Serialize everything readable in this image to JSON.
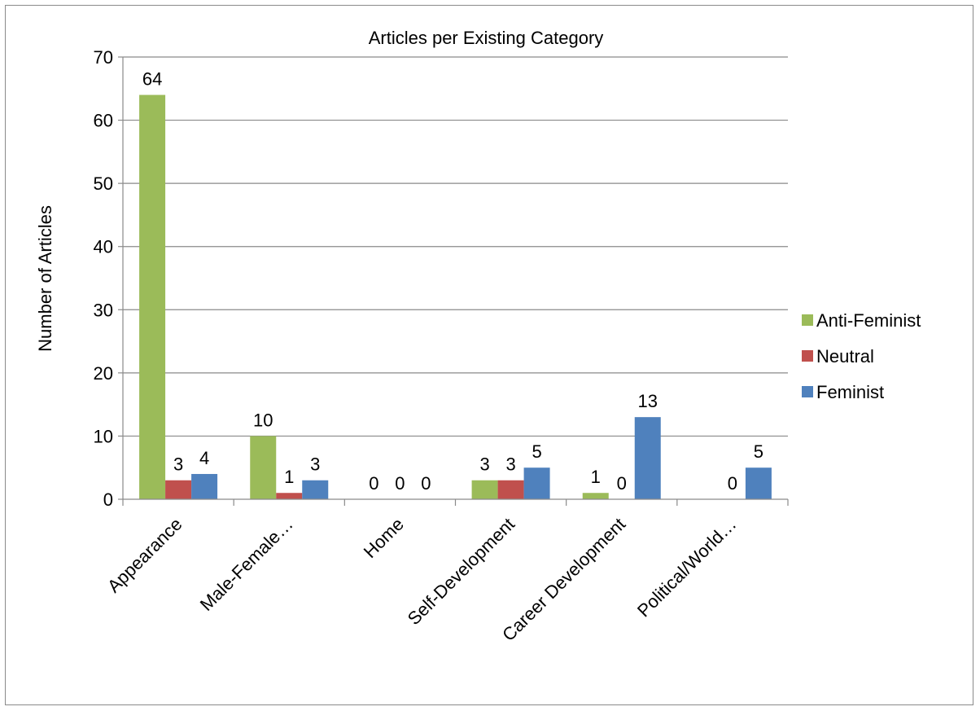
{
  "chart_data": {
    "type": "bar",
    "title": "Articles per Existing Category",
    "xlabel": "",
    "ylabel": "Number of Articles",
    "ylim": [
      0,
      70
    ],
    "ytick_step": 10,
    "grid": true,
    "legend_position": "right",
    "categories": [
      "Appearance",
      "Male-Female…",
      "Home",
      "Self-Development",
      "Career Development",
      "Political/World…"
    ],
    "series": [
      {
        "name": "Anti-Feminist",
        "color": "#9BBB59",
        "values": [
          64,
          10,
          0,
          3,
          1,
          0
        ]
      },
      {
        "name": "Neutral",
        "color": "#C0504D",
        "values": [
          3,
          1,
          0,
          3,
          0,
          0
        ]
      },
      {
        "name": "Feminist",
        "color": "#4F81BD",
        "values": [
          4,
          3,
          0,
          5,
          13,
          5
        ]
      }
    ],
    "data_labels": [
      [
        "64",
        "10",
        "0",
        "3",
        "1",
        ""
      ],
      [
        "3",
        "1",
        "0",
        "3",
        "0",
        "0"
      ],
      [
        "4",
        "3",
        "0",
        "5",
        "13",
        "5"
      ]
    ]
  }
}
